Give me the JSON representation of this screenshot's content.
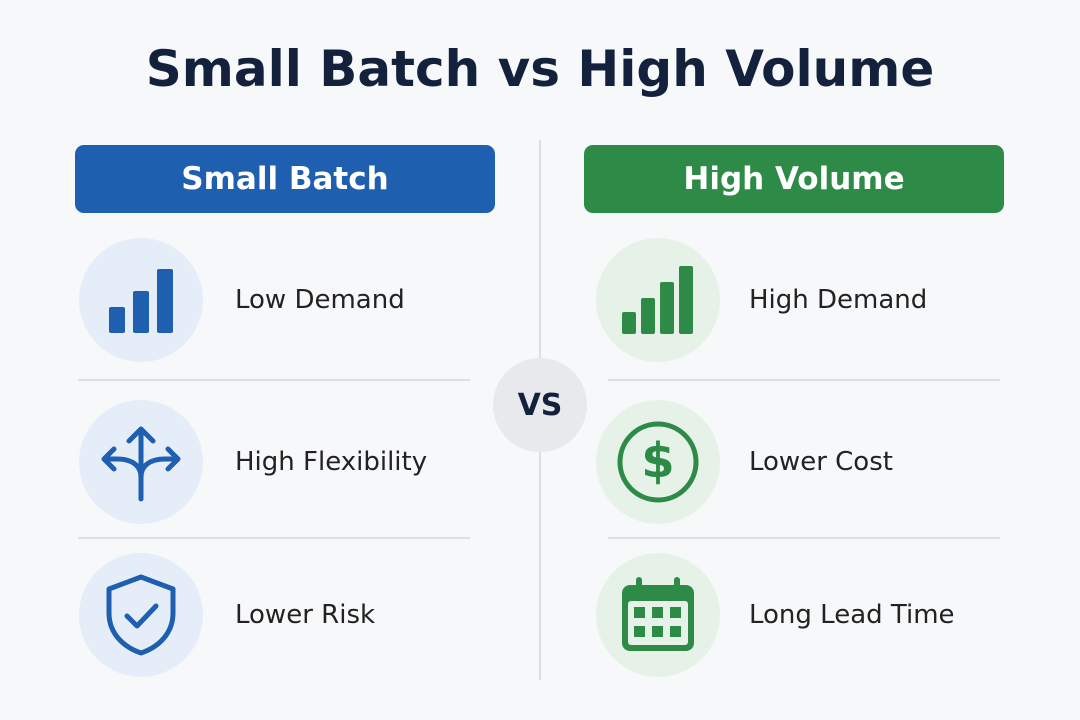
{
  "title": "Small Batch vs High Volume",
  "left": {
    "header": "Small Batch",
    "items": [
      "Low Demand",
      "High Flexibility",
      "Lower Risk"
    ]
  },
  "vs": "VS",
  "right": {
    "header": "High Volume",
    "items": [
      "High Demand",
      "Lower Cost",
      "Long Lead Time"
    ]
  }
}
